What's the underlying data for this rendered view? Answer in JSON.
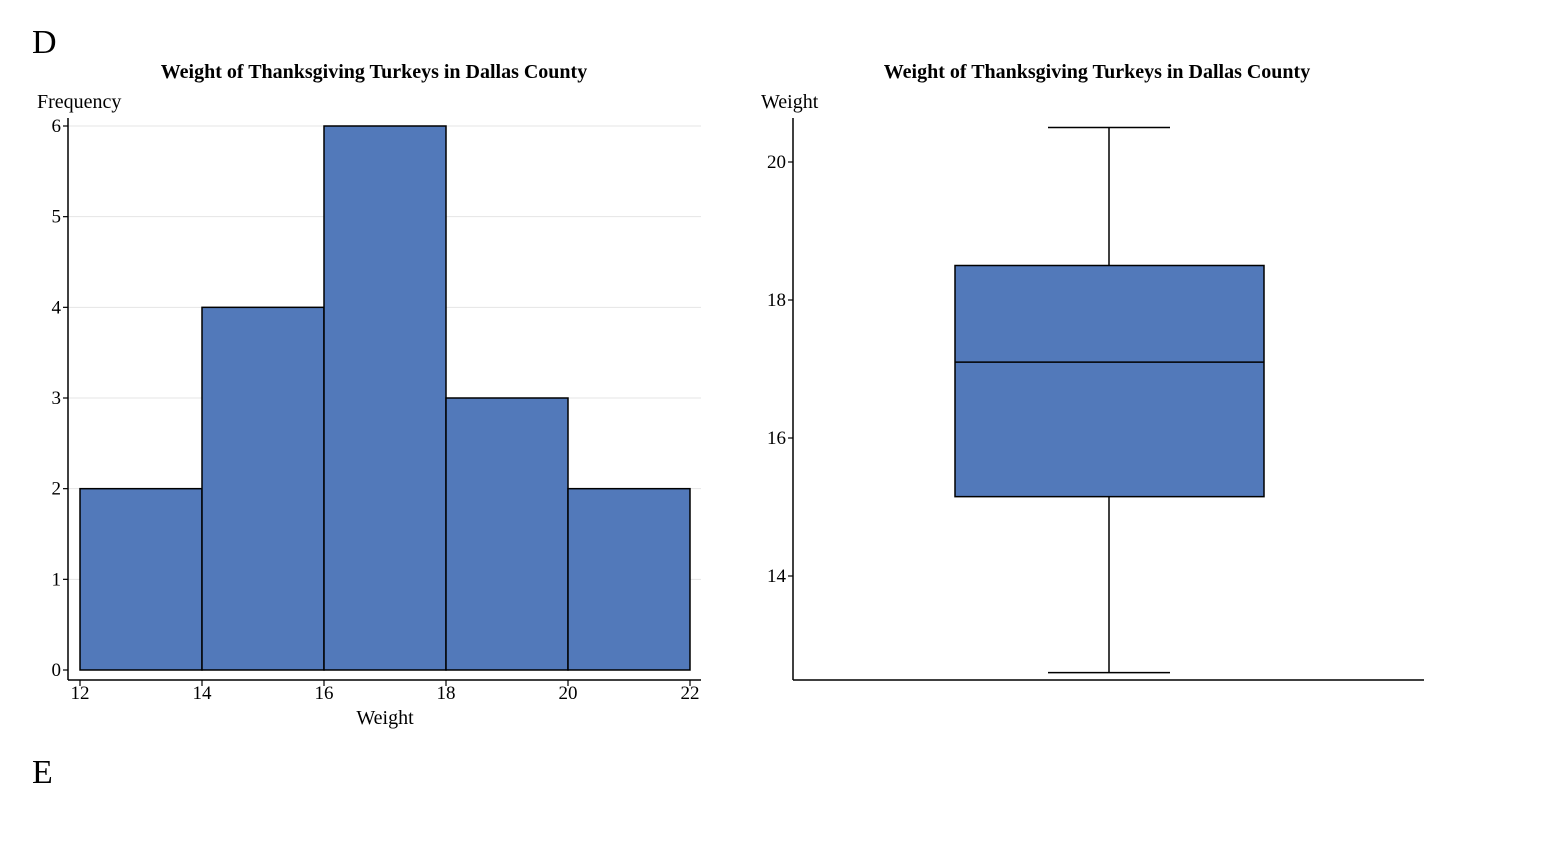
{
  "labels": {
    "panel_d": "D",
    "panel_e": "E"
  },
  "colors": {
    "fill": "#5279ba",
    "stroke": "#000000",
    "grid": "#e4e4e4"
  },
  "chart_data": [
    {
      "type": "bar",
      "subtype": "histogram",
      "title": "Weight of Thanksgiving Turkeys in Dallas County",
      "xlabel": "Weight",
      "ylabel": "Frequency",
      "bins": [
        {
          "x0": 12,
          "x1": 14,
          "count": 2
        },
        {
          "x0": 14,
          "x1": 16,
          "count": 4
        },
        {
          "x0": 16,
          "x1": 18,
          "count": 6
        },
        {
          "x0": 18,
          "x1": 20,
          "count": 3
        },
        {
          "x0": 20,
          "x1": 22,
          "count": 2
        }
      ],
      "xticks": [
        12,
        14,
        16,
        18,
        20,
        22
      ],
      "yticks": [
        0,
        1,
        2,
        3,
        4,
        5,
        6
      ],
      "xlim": [
        11.8,
        22.2
      ],
      "ylim": [
        0,
        6
      ],
      "grid": true
    },
    {
      "type": "box",
      "title": "Weight of Thanksgiving Turkeys in Dallas County",
      "ylabel": "Weight",
      "min": 12.6,
      "q1": 15.15,
      "median": 17.1,
      "q3": 18.5,
      "max": 20.5,
      "yticks": [
        14,
        16,
        18,
        20
      ],
      "ylim": [
        12.45,
        20.65
      ],
      "grid": false
    }
  ]
}
